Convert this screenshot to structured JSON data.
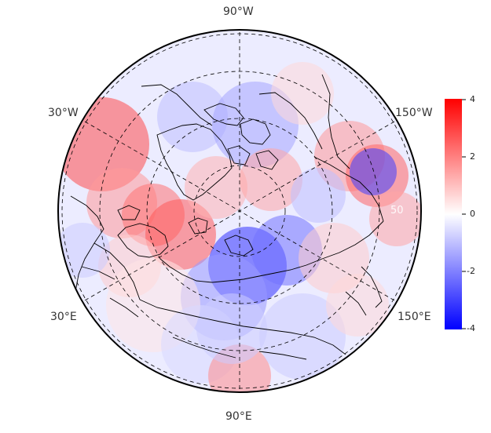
{
  "map": {
    "projection": "north polar stereographic",
    "longitude_labels": {
      "top": "90°W",
      "bottom": "90°E",
      "upper_left": "30°W",
      "upper_right": "150°W",
      "lower_left": "30°E",
      "lower_right": "150°E"
    },
    "latitude_ring_label": "50",
    "colormap_stops": [
      "#0000ff",
      "#ffffff",
      "#ff0000"
    ]
  },
  "colorbar": {
    "min": -4,
    "max": 4,
    "tick_labels": [
      "4",
      "2",
      "0",
      "-2",
      "-4"
    ]
  }
}
